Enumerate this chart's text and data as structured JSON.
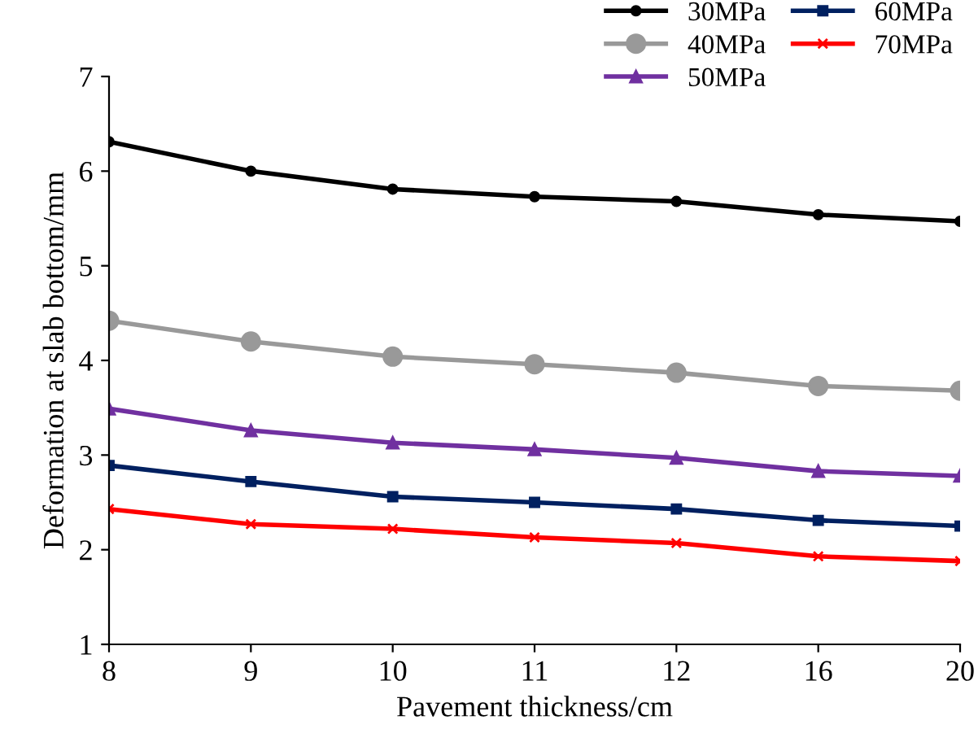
{
  "chart_data": {
    "type": "line",
    "xlabel": "Pavement thickness/cm",
    "ylabel": "Deformation at slab bottom/mm",
    "categories": [
      "8",
      "9",
      "10",
      "11",
      "12",
      "16",
      "20"
    ],
    "ylim": [
      1,
      7
    ],
    "yticks": [
      1,
      2,
      3,
      4,
      5,
      6,
      7
    ],
    "grid": false,
    "legend": "top right",
    "series": [
      {
        "name": "30MPa",
        "color": "#000000",
        "marker": "circle",
        "values": [
          6.31,
          6.0,
          5.81,
          5.73,
          5.68,
          5.54,
          5.47
        ]
      },
      {
        "name": "40MPa",
        "color": "#999999",
        "marker": "circle",
        "values": [
          4.42,
          4.2,
          4.04,
          3.96,
          3.87,
          3.73,
          3.68
        ]
      },
      {
        "name": "50MPa",
        "color": "#7030a0",
        "marker": "triangle",
        "values": [
          3.49,
          3.26,
          3.13,
          3.06,
          2.97,
          2.83,
          2.78
        ]
      },
      {
        "name": "60MPa",
        "color": "#002060",
        "marker": "square",
        "values": [
          2.89,
          2.72,
          2.56,
          2.5,
          2.43,
          2.31,
          2.25
        ]
      },
      {
        "name": "70MPa",
        "color": "#ff0000",
        "marker": "cross",
        "values": [
          2.43,
          2.27,
          2.22,
          2.13,
          2.07,
          1.93,
          1.88
        ]
      }
    ]
  }
}
